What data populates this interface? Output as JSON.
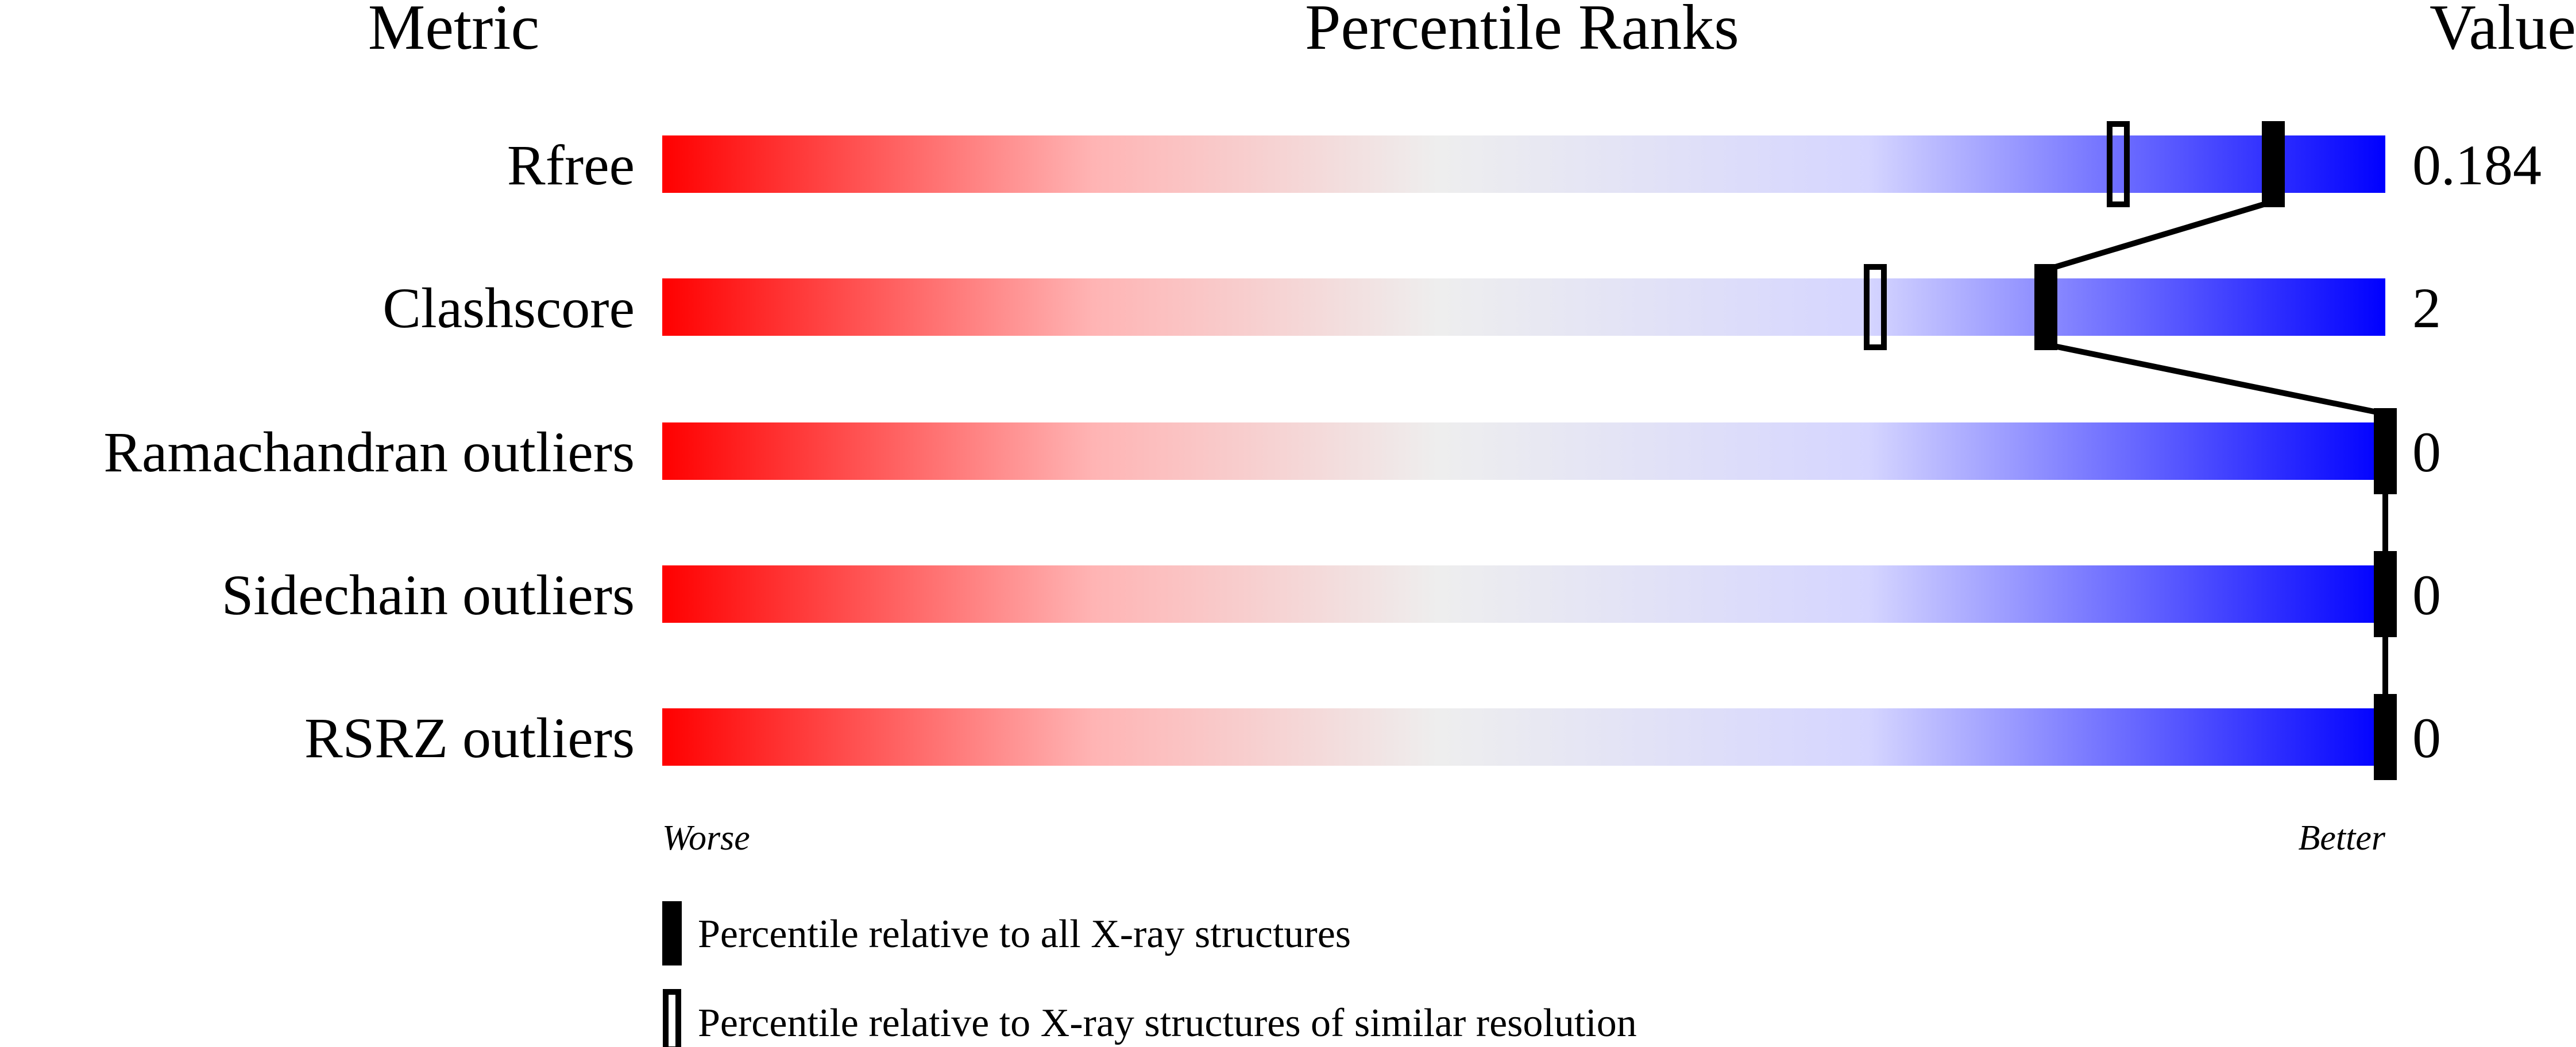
{
  "chart_data": {
    "type": "percentile-slider",
    "headers": {
      "metric": "Metric",
      "ranks": "Percentile Ranks",
      "value": "Value"
    },
    "metrics": [
      {
        "label": "Rfree",
        "value": "0.184",
        "percentile_all": 93.5,
        "percentile_similar": 84.5
      },
      {
        "label": "Clashscore",
        "value": "2",
        "percentile_all": 80.3,
        "percentile_similar": 70.4
      },
      {
        "label": "Ramachandran outliers",
        "value": "0",
        "percentile_all": 100,
        "percentile_similar": null
      },
      {
        "label": "Sidechain outliers",
        "value": "0",
        "percentile_all": 100,
        "percentile_similar": null
      },
      {
        "label": "RSRZ outliers",
        "value": "0",
        "percentile_all": 100,
        "percentile_similar": null
      }
    ],
    "xlim": [
      0,
      100
    ],
    "axis_labels": {
      "left": "Worse",
      "right": "Better"
    },
    "legend": [
      {
        "marker": "filled",
        "label": "Percentile relative to all X-ray structures"
      },
      {
        "marker": "open",
        "label": "Percentile relative to X-ray structures of similar resolution"
      }
    ],
    "colors": {
      "worse": "#ff0000",
      "middle": "#eeeeee",
      "better": "#0000ff",
      "marker": "#000000"
    }
  }
}
